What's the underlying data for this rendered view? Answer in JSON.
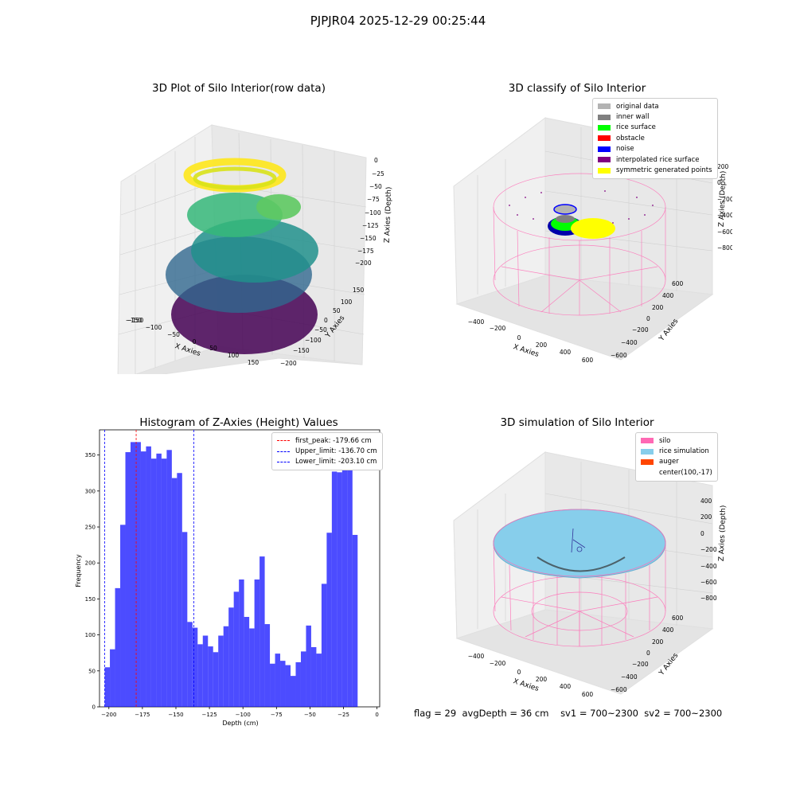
{
  "suptitle": "PJPJR04 2025-12-29 00:25:44",
  "panels": {
    "raw": {
      "title": "3D Plot of Silo Interior(row data)",
      "xlabel": "X Axies",
      "ylabel": "Y Axies",
      "zlabel": "Z Axies (Depth)",
      "xticks": [
        "−150",
        "−100",
        "−50",
        "0",
        "50",
        "100",
        "150"
      ],
      "yticks": [
        "150",
        "100",
        "50",
        "0",
        "−50",
        "−100",
        "−150",
        "−200"
      ],
      "zticks": [
        "0",
        "−25",
        "−50",
        "−75",
        "−100",
        "−125",
        "−150",
        "−175",
        "−200"
      ]
    },
    "classify": {
      "title": "3D classify of Silo Interior",
      "xlabel": "X Axies",
      "ylabel": "Y Axies",
      "zlabel": "Z Axies (Depth)",
      "xticks": [
        "−400",
        "−200",
        "0",
        "200",
        "400",
        "600"
      ],
      "yticks": [
        "600",
        "400",
        "200",
        "0",
        "−200",
        "−400",
        "−600"
      ],
      "zticks": [
        "200",
        "0",
        "−200",
        "−400",
        "−600",
        "−800"
      ],
      "legend": [
        {
          "label": "original data",
          "color": "#b3b3b3"
        },
        {
          "label": "inner wall",
          "color": "#808080"
        },
        {
          "label": "rice surface",
          "color": "#00ff00"
        },
        {
          "label": "obstacle",
          "color": "#ff0000"
        },
        {
          "label": "noise",
          "color": "#0000ff"
        },
        {
          "label": "interpolated rice surface",
          "color": "#800080"
        },
        {
          "label": "symmetric generated points",
          "color": "#ffff00"
        }
      ]
    },
    "simulation": {
      "title": "3D simulation of Silo Interior",
      "xlabel": "X Axies",
      "ylabel": "Y Axies",
      "zlabel": "Z Axies (Depth)",
      "xticks": [
        "−400",
        "−200",
        "0",
        "200",
        "400",
        "600"
      ],
      "yticks": [
        "600",
        "400",
        "200",
        "0",
        "−200",
        "−400",
        "−600"
      ],
      "zticks": [
        "400",
        "200",
        "0",
        "−200",
        "−400",
        "−600",
        "−800"
      ],
      "legend": [
        {
          "label": "silo",
          "color": "#ff69b4"
        },
        {
          "label": "rice simulation",
          "color": "#87ceeb"
        },
        {
          "label": "auger",
          "color": "#ff4500"
        },
        {
          "label": "center(100,-17)",
          "color": ""
        }
      ]
    }
  },
  "status": {
    "flag": "flag = 29",
    "avg_depth": "avgDepth = 36 cm",
    "sv1": "sv1 = 700~2300",
    "sv2": "sv2 = 700~2300"
  },
  "chart_data": {
    "type": "bar",
    "title": "Histogram of Z-Axies (Height) Values",
    "xlabel": "Depth (cm)",
    "ylabel": "Frequency",
    "xlim": [
      -207,
      2
    ],
    "ylim": [
      0,
      385
    ],
    "xticks": [
      -200,
      -175,
      -150,
      -125,
      -100,
      -75,
      -50,
      -25,
      0
    ],
    "yticks": [
      0,
      50,
      100,
      150,
      200,
      250,
      300,
      350
    ],
    "bin_start": -203.1,
    "bin_width": 3.85,
    "bar_color": "#0000ff",
    "values": [
      55,
      80,
      165,
      253,
      354,
      368,
      368,
      355,
      362,
      345,
      352,
      345,
      357,
      318,
      325,
      243,
      118,
      110,
      87,
      99,
      84,
      76,
      99,
      112,
      138,
      160,
      177,
      125,
      109,
      177,
      209,
      115,
      60,
      74,
      64,
      58,
      43,
      62,
      77,
      113,
      83,
      74,
      171,
      242,
      327,
      326,
      335,
      344,
      239
    ],
    "reference_lines": [
      {
        "label": "first_peak: -179.66 cm",
        "value": -179.66,
        "color": "#ff0000"
      },
      {
        "label": "Upper_limit: -136.70 cm",
        "value": -136.7,
        "color": "#0000ff"
      },
      {
        "label": "Lower_limit: -203.10 cm",
        "value": -203.1,
        "color": "#0000ff"
      }
    ]
  }
}
